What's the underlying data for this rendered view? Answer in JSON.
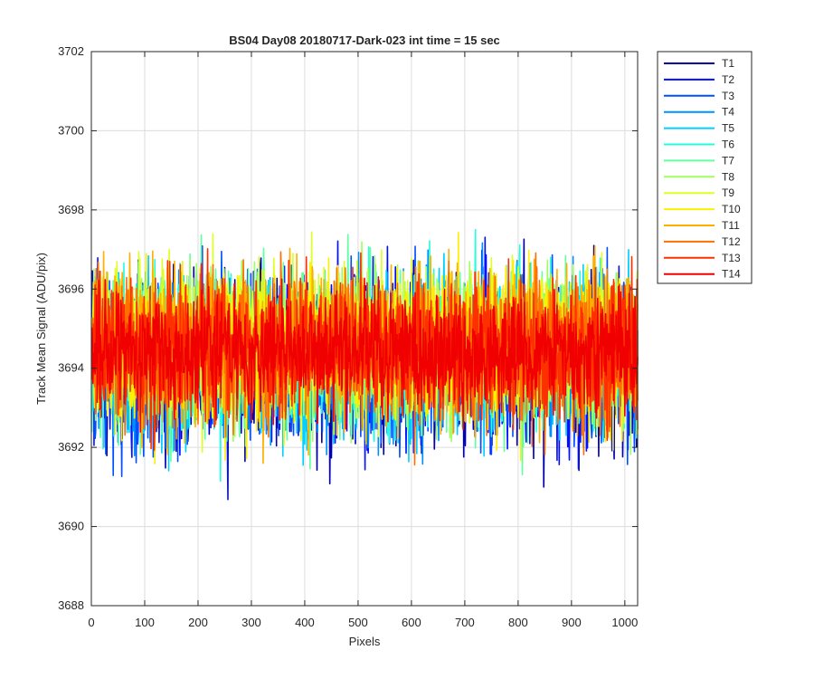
{
  "chart_data": {
    "type": "line",
    "title": "BS04 Day08 20180717-Dark-023 int time = 15 sec",
    "xlabel": "Pixels",
    "ylabel": "Track Mean Signal (ADU/pix)",
    "xlim": [
      0,
      1024
    ],
    "ylim": [
      3688,
      3702
    ],
    "xticks": [
      0,
      100,
      200,
      300,
      400,
      500,
      600,
      700,
      800,
      900,
      1000
    ],
    "yticks": [
      3688,
      3690,
      3692,
      3694,
      3696,
      3698,
      3700,
      3702
    ],
    "grid": true,
    "legend_position": "outside-top-right",
    "n_points": 1024,
    "series": [
      {
        "name": "T1",
        "color": "#0000af",
        "mean": 3694.2,
        "noise": 1.45
      },
      {
        "name": "T2",
        "color": "#0010ff",
        "mean": 3694.2,
        "noise": 1.45
      },
      {
        "name": "T3",
        "color": "#0050ff",
        "mean": 3694.2,
        "noise": 1.4
      },
      {
        "name": "T4",
        "color": "#0090ff",
        "mean": 3694.3,
        "noise": 1.35
      },
      {
        "name": "T5",
        "color": "#00cfff",
        "mean": 3694.3,
        "noise": 1.35
      },
      {
        "name": "T6",
        "color": "#20ffdf",
        "mean": 3694.4,
        "noise": 1.3
      },
      {
        "name": "T7",
        "color": "#60ff9f",
        "mean": 3694.5,
        "noise": 1.3
      },
      {
        "name": "T8",
        "color": "#9fff60",
        "mean": 3694.5,
        "noise": 1.3
      },
      {
        "name": "T9",
        "color": "#dfff20",
        "mean": 3694.6,
        "noise": 1.3
      },
      {
        "name": "T10",
        "color": "#ffef00",
        "mean": 3694.6,
        "noise": 1.3
      },
      {
        "name": "T11",
        "color": "#ffaf00",
        "mean": 3694.6,
        "noise": 1.3
      },
      {
        "name": "T12",
        "color": "#ff7000",
        "mean": 3694.5,
        "noise": 1.25
      },
      {
        "name": "T13",
        "color": "#ff3000",
        "mean": 3694.5,
        "noise": 1.2
      },
      {
        "name": "T14",
        "color": "#f00000",
        "mean": 3694.4,
        "noise": 1.0
      }
    ]
  }
}
